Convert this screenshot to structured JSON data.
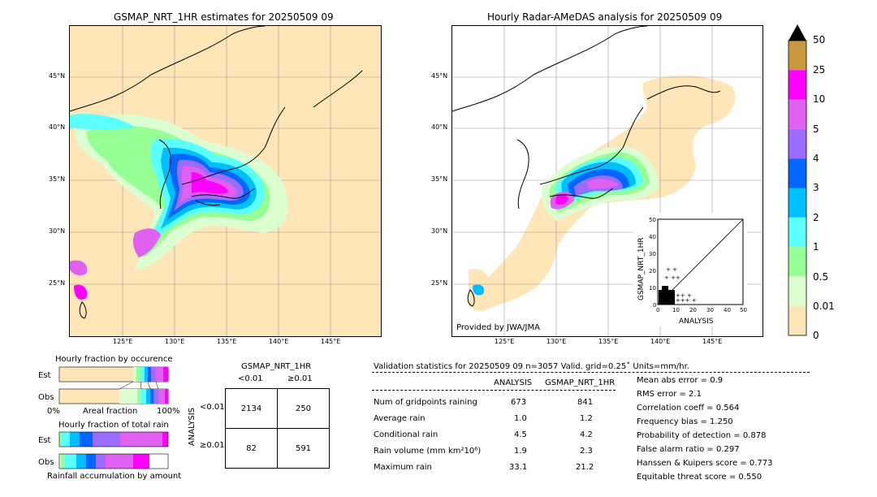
{
  "left_map": {
    "title": "GSMAP_NRT_1HR estimates for 20250509 09",
    "lat_ticks": [
      "45°N",
      "40°N",
      "35°N",
      "30°N",
      "25°N"
    ],
    "lon_ticks": [
      "125°E",
      "130°E",
      "135°E",
      "140°E",
      "145°E"
    ]
  },
  "right_map": {
    "title": "Hourly Radar-AMeDAS analysis for 20250509 09",
    "lat_ticks": [
      "45°N",
      "40°N",
      "35°N",
      "30°N",
      "25°N"
    ],
    "lon_ticks": [
      "125°E",
      "130°E",
      "135°E",
      "140°E",
      "145°E"
    ],
    "credit": "Provided by JWA/JMA"
  },
  "colorbar": {
    "labels": [
      "50",
      "25",
      "10",
      "5",
      "4",
      "3",
      "2",
      "1",
      "0.5",
      "0.01",
      "0"
    ],
    "colors": [
      "#c8963c",
      "#ff00ff",
      "#e060f0",
      "#9b6cff",
      "#0066ff",
      "#00bfff",
      "#5cffff",
      "#96ff96",
      "#dcffd2",
      "#fee6b8"
    ],
    "over_color": "#000000"
  },
  "scatter_inset": {
    "xlabel": "ANALYSIS",
    "ylabel": "GSMAP_NRT_1HR",
    "ticks": [
      "0",
      "10",
      "20",
      "30",
      "40",
      "50"
    ]
  },
  "fraction_occurrence": {
    "title": "Hourly fraction by occurence",
    "row_est": "Est",
    "row_obs": "Obs",
    "axis_left": "0%",
    "axis_mid": "Areal fraction",
    "axis_right": "100%"
  },
  "fraction_total": {
    "title": "Hourly fraction of total rain",
    "row_est": "Est",
    "row_obs": "Obs",
    "footer": "Rainfall accumulation by amount"
  },
  "contingency": {
    "title": "GSMAP_NRT_1HR",
    "col_lt": "<0.01",
    "col_ge": "≥0.01",
    "row_axis": "ANALYSIS",
    "row_lt": "<0.01",
    "row_ge": "≥0.01",
    "cells": [
      "2134",
      "250",
      "82",
      "591"
    ]
  },
  "validation": {
    "header": "Validation statistics for 20250509 09  n=3057 Valid. grid=0.25˚ Units=mm/hr.",
    "col_analysis": "ANALYSIS",
    "col_gsmap": "GSMAP_NRT_1HR",
    "rows": [
      {
        "label": "Num of gridpoints raining",
        "a": "673",
        "g": "841"
      },
      {
        "label": "Average rain",
        "a": "1.0",
        "g": "1.2"
      },
      {
        "label": "Conditional rain",
        "a": "4.5",
        "g": "4.2"
      },
      {
        "label": "Rain volume (mm km²10⁶)",
        "a": "1.9",
        "g": "2.3"
      },
      {
        "label": "Maximum rain",
        "a": "33.1",
        "g": "21.2"
      }
    ],
    "scores": [
      "Mean abs error =    0.9",
      "RMS error =    2.1",
      "Correlation coeff =  0.564",
      "Frequency bias =  1.250",
      "Probability of detection =  0.878",
      "False alarm ratio =  0.297",
      "Hanssen & Kuipers score =  0.773",
      "Equitable threat score =  0.550"
    ]
  },
  "chart_data": [
    {
      "type": "heatmap",
      "title": "GSMAP_NRT_1HR estimates for 20250509 09",
      "x_ticks": [
        "125°E",
        "130°E",
        "135°E",
        "140°E",
        "145°E"
      ],
      "y_ticks": [
        "45°N",
        "40°N",
        "35°N",
        "30°N",
        "25°N"
      ]
    },
    {
      "type": "heatmap",
      "title": "Hourly Radar-AMeDAS analysis for 20250509 09",
      "x_ticks": [
        "125°E",
        "130°E",
        "135°E",
        "140°E",
        "145°E"
      ],
      "y_ticks": [
        "45°N",
        "40°N",
        "35°N",
        "30°N",
        "25°N"
      ]
    },
    {
      "type": "scatter",
      "xlabel": "ANALYSIS",
      "ylabel": "GSMAP_NRT_1HR",
      "xlim": [
        0,
        50
      ],
      "ylim": [
        0,
        50
      ]
    },
    {
      "type": "table",
      "title": "GSMAP_NRT_1HR",
      "rows": [
        [
          "2134",
          "250"
        ],
        [
          "82",
          "591"
        ]
      ]
    }
  ]
}
